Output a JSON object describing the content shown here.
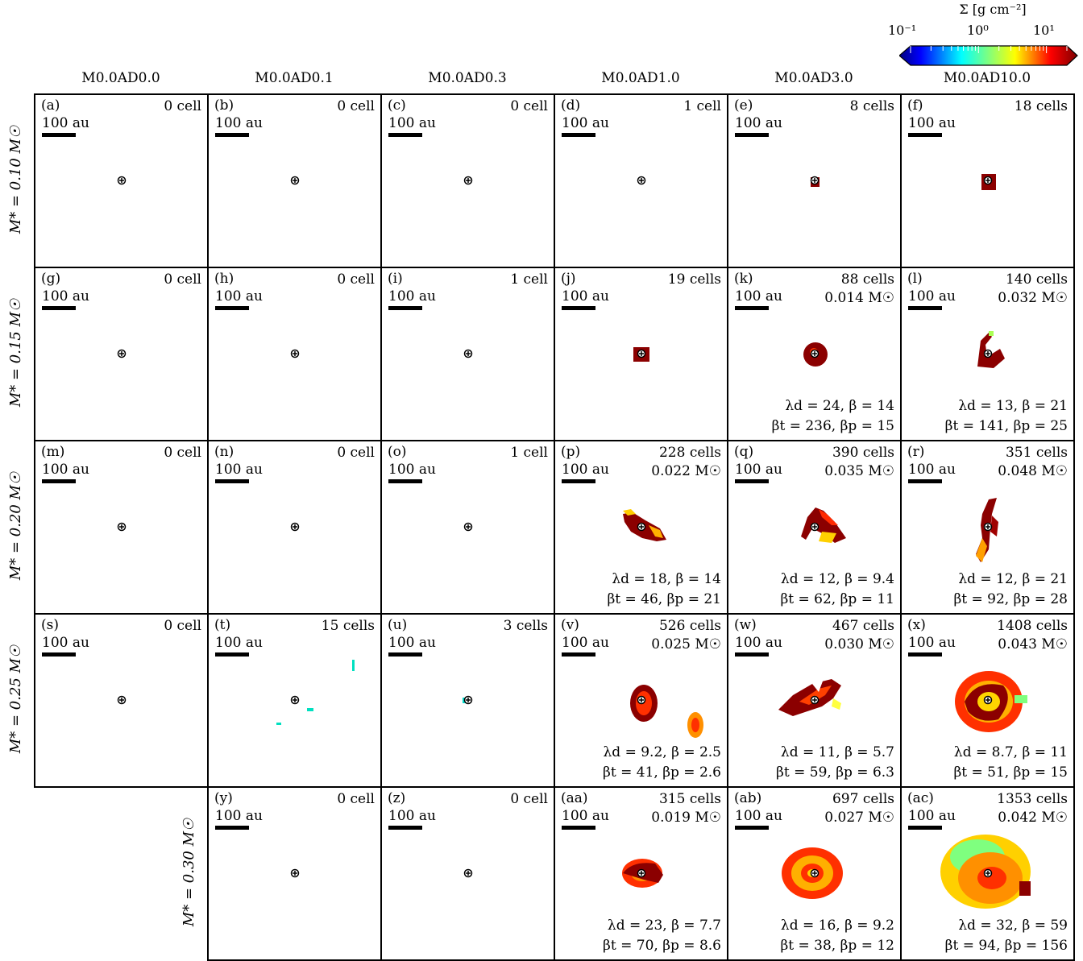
{
  "colorbar": {
    "title": "Σ [g cm⁻²]",
    "ticks": [
      "10⁻¹",
      "10⁰",
      "10¹"
    ],
    "scale": "log",
    "range": [
      0.1,
      20
    ],
    "colormap": "jet"
  },
  "columns": [
    "M0.0AD0.0",
    "M0.0AD0.1",
    "M0.0AD0.3",
    "M0.0AD1.0",
    "M0.0AD3.0",
    "M0.0AD10.0"
  ],
  "rows": [
    "M* = 0.10 M☉",
    "M* = 0.15 M☉",
    "M* = 0.20 M☉",
    "M* = 0.25 M☉",
    "M* = 0.30 M☉"
  ],
  "scale_label": "100 au",
  "chart_data": {
    "type": "heatmap",
    "title": "",
    "panels": [
      {
        "id": "(a)",
        "row": 0,
        "col": 0,
        "cells": "0 cell"
      },
      {
        "id": "(b)",
        "row": 0,
        "col": 1,
        "cells": "0 cell"
      },
      {
        "id": "(c)",
        "row": 0,
        "col": 2,
        "cells": "0 cell"
      },
      {
        "id": "(d)",
        "row": 0,
        "col": 3,
        "cells": "1 cell"
      },
      {
        "id": "(e)",
        "row": 0,
        "col": 4,
        "cells": "8 cells"
      },
      {
        "id": "(f)",
        "row": 0,
        "col": 5,
        "cells": "18 cells"
      },
      {
        "id": "(g)",
        "row": 1,
        "col": 0,
        "cells": "0 cell"
      },
      {
        "id": "(h)",
        "row": 1,
        "col": 1,
        "cells": "0 cell"
      },
      {
        "id": "(i)",
        "row": 1,
        "col": 2,
        "cells": "1 cell"
      },
      {
        "id": "(j)",
        "row": 1,
        "col": 3,
        "cells": "19 cells"
      },
      {
        "id": "(k)",
        "row": 1,
        "col": 4,
        "cells": "88 cells",
        "mass": "0.014 M☉",
        "p1": "λd = 24, β = 14",
        "p2": "βt = 236, βp = 15"
      },
      {
        "id": "(l)",
        "row": 1,
        "col": 5,
        "cells": "140 cells",
        "mass": "0.032 M☉",
        "p1": "λd = 13, β = 21",
        "p2": "βt = 141, βp = 25"
      },
      {
        "id": "(m)",
        "row": 2,
        "col": 0,
        "cells": "0 cell"
      },
      {
        "id": "(n)",
        "row": 2,
        "col": 1,
        "cells": "0 cell"
      },
      {
        "id": "(o)",
        "row": 2,
        "col": 2,
        "cells": "1 cell"
      },
      {
        "id": "(p)",
        "row": 2,
        "col": 3,
        "cells": "228 cells",
        "mass": "0.022 M☉",
        "p1": "λd = 18, β = 14",
        "p2": "βt = 46, βp = 21"
      },
      {
        "id": "(q)",
        "row": 2,
        "col": 4,
        "cells": "390 cells",
        "mass": "0.035 M☉",
        "p1": "λd = 12, β = 9.4",
        "p2": "βt = 62, βp = 11"
      },
      {
        "id": "(r)",
        "row": 2,
        "col": 5,
        "cells": "351 cells",
        "mass": "0.048 M☉",
        "p1": "λd = 12, β = 21",
        "p2": "βt = 92, βp = 28"
      },
      {
        "id": "(s)",
        "row": 3,
        "col": 0,
        "cells": "0 cell"
      },
      {
        "id": "(t)",
        "row": 3,
        "col": 1,
        "cells": "15 cells"
      },
      {
        "id": "(u)",
        "row": 3,
        "col": 2,
        "cells": "3 cells"
      },
      {
        "id": "(v)",
        "row": 3,
        "col": 3,
        "cells": "526 cells",
        "mass": "0.025 M☉",
        "p1": "λd = 9.2, β = 2.5",
        "p2": "βt = 41, βp = 2.6"
      },
      {
        "id": "(w)",
        "row": 3,
        "col": 4,
        "cells": "467 cells",
        "mass": "0.030 M☉",
        "p1": "λd = 11, β = 5.7",
        "p2": "βt = 59, βp = 6.3"
      },
      {
        "id": "(x)",
        "row": 3,
        "col": 5,
        "cells": "1408 cells",
        "mass": "0.043 M☉",
        "p1": "λd = 8.7, β = 11",
        "p2": "βt = 51, βp = 15"
      },
      {
        "id": "(y)",
        "row": 4,
        "col": 1,
        "cells": "0 cell"
      },
      {
        "id": "(z)",
        "row": 4,
        "col": 2,
        "cells": "0 cell"
      },
      {
        "id": "(aa)",
        "row": 4,
        "col": 3,
        "cells": "315 cells",
        "mass": "0.019 M☉",
        "p1": "λd = 23, β = 7.7",
        "p2": "βt = 70, βp = 8.6"
      },
      {
        "id": "(ab)",
        "row": 4,
        "col": 4,
        "cells": "697 cells",
        "mass": "0.027 M☉",
        "p1": "λd = 16, β = 9.2",
        "p2": "βt = 38, βp = 12"
      },
      {
        "id": "(ac)",
        "row": 4,
        "col": 5,
        "cells": "1353 cells",
        "mass": "0.042 M☉",
        "p1": "λd = 32, β = 59",
        "p2": "βt = 94, βp = 156"
      }
    ]
  }
}
